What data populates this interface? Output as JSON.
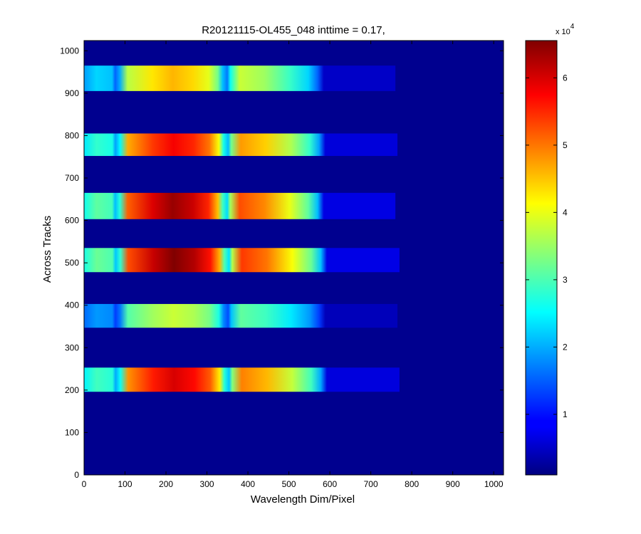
{
  "chart_data": {
    "type": "heatmap",
    "title": "R20121115-OL455_048 inttime = 0.17,",
    "xlabel": "Wavelength Dim/Pixel",
    "ylabel": "Across Tracks",
    "xlim": [
      0,
      1024
    ],
    "ylim": [
      0,
      1024
    ],
    "x_ticks": [
      "0",
      "100",
      "200",
      "300",
      "400",
      "500",
      "600",
      "700",
      "800",
      "900",
      "1000"
    ],
    "y_ticks": [
      "0",
      "100",
      "200",
      "300",
      "400",
      "500",
      "600",
      "700",
      "800",
      "900",
      "1000"
    ],
    "colormap": "jet",
    "background_value": 1000,
    "colorbar": {
      "range": [
        1000,
        65535
      ],
      "ticks": [
        "1",
        "2",
        "3",
        "4",
        "5",
        "6"
      ],
      "exponent_label": "x 10",
      "exponent": "4"
    },
    "bands": [
      {
        "y_range": [
          905,
          965
        ],
        "x_range": [
          0,
          760
        ],
        "peak_value": 46000,
        "peak_x": 290
      },
      {
        "y_range": [
          752,
          805
        ],
        "x_range": [
          0,
          765
        ],
        "peak_value": 58000,
        "peak_x": 290
      },
      {
        "y_range": [
          603,
          665
        ],
        "x_range": [
          0,
          760
        ],
        "peak_value": 64000,
        "peak_x": 290
      },
      {
        "y_range": [
          478,
          535
        ],
        "x_range": [
          0,
          770
        ],
        "peak_value": 65535,
        "peak_x": 290
      },
      {
        "y_range": [
          347,
          403
        ],
        "x_range": [
          0,
          765
        ],
        "peak_value": 38000,
        "peak_x": 290
      },
      {
        "y_range": [
          196,
          253
        ],
        "x_range": [
          0,
          770
        ],
        "peak_value": 60000,
        "peak_x": 290
      }
    ]
  }
}
